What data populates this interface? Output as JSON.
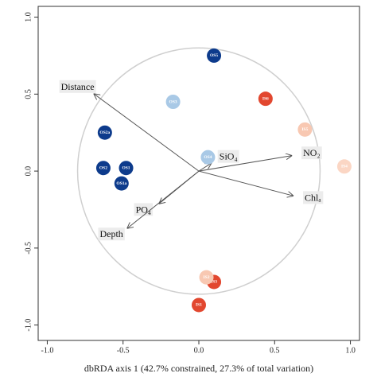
{
  "chart_data": {
    "type": "scatter",
    "x_label": "dbRDA axis 1 (42.7% constrained, 27.3% of total variation)",
    "xlim": [
      -1.06,
      1.06
    ],
    "ylim": [
      -1.1,
      1.07
    ],
    "xticks": [
      {
        "value": -1,
        "label": "-1.0"
      },
      -0.5,
      {
        "value": 0,
        "label": "0.0"
      },
      0.5,
      {
        "value": 1,
        "label": "1.0"
      }
    ],
    "yticks": [
      {
        "value": -1,
        "label": "-1.0"
      },
      -0.5,
      {
        "value": 0,
        "label": "0.0"
      },
      0.5,
      {
        "value": 1,
        "label": "1.0"
      }
    ],
    "circle_radius": 0.8,
    "points": [
      {
        "label": "OS5",
        "x": 0.1,
        "y": 0.75,
        "color": "#0d3b8c"
      },
      {
        "label": "OS3",
        "x": -0.17,
        "y": 0.45,
        "color": "#a9c9e6"
      },
      {
        "label": "IS6",
        "x": 0.44,
        "y": 0.47,
        "color": "#e2472f"
      },
      {
        "label": "IS5",
        "x": 0.7,
        "y": 0.27,
        "color": "#f8c8b2"
      },
      {
        "label": "IS4",
        "x": 0.96,
        "y": 0.03,
        "color": "#fbd6c4"
      },
      {
        "label": "OS4",
        "x": 0.06,
        "y": 0.09,
        "color": "#a9c9e6"
      },
      {
        "label": "OS2a",
        "x": -0.62,
        "y": 0.25,
        "color": "#0d3b8c"
      },
      {
        "label": "OS2",
        "x": -0.63,
        "y": 0.02,
        "color": "#0d3b8c"
      },
      {
        "label": "OS1",
        "x": -0.48,
        "y": 0.02,
        "color": "#0d3b8c"
      },
      {
        "label": "OS1a",
        "x": -0.51,
        "y": -0.08,
        "color": "#0d3b8c"
      },
      {
        "label": "IS3",
        "x": 0.1,
        "y": -0.72,
        "color": "#e2472f"
      },
      {
        "label": "IS2",
        "x": 0.05,
        "y": -0.69,
        "color": "#f8c8b2"
      },
      {
        "label": "IS1",
        "x": 0.0,
        "y": -0.87,
        "color": "#e2472f"
      }
    ],
    "vectors": [
      {
        "label": "Distance",
        "x": -0.69,
        "y": 0.5
      },
      {
        "label": "SiO₄",
        "x": 0.08,
        "y": 0.05
      },
      {
        "label": "NO₂",
        "x": 0.61,
        "y": 0.1
      },
      {
        "label": "Chlₐ",
        "x": 0.62,
        "y": -0.16
      },
      {
        "label": "PO₄",
        "x": -0.26,
        "y": -0.21
      },
      {
        "label": "Depth",
        "x": -0.47,
        "y": -0.37
      }
    ]
  }
}
